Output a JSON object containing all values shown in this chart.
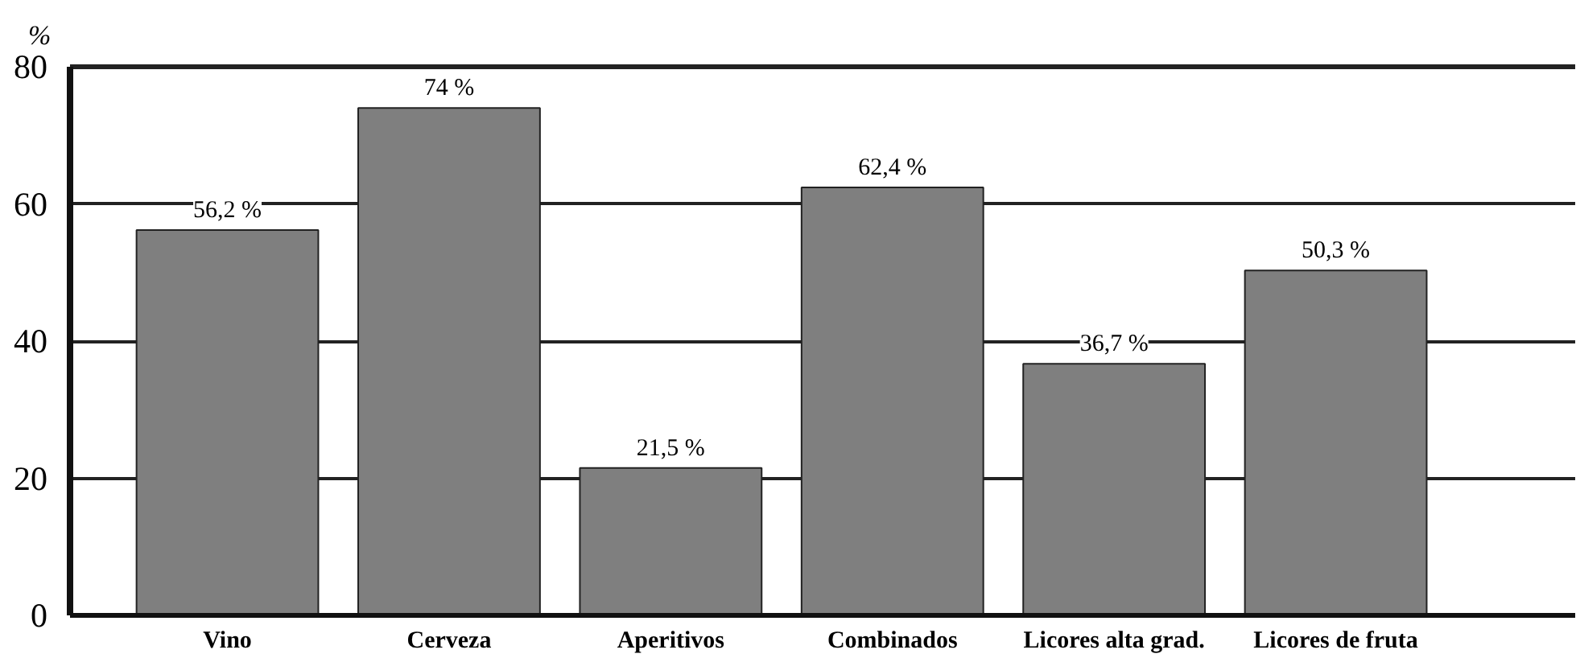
{
  "chart_data": {
    "type": "bar",
    "ylabel": "%",
    "categories": [
      "Vino",
      "Cerveza",
      "Aperitivos",
      "Combinados",
      "Licores alta grad.",
      "Licores de fruta"
    ],
    "values": [
      56.2,
      74,
      21.5,
      62.4,
      36.7,
      50.3
    ],
    "color": "#7f7f7f",
    "value_labels": [
      "56,2 %",
      "74 %",
      "21,5 %",
      "62,4 %",
      "36,7 %",
      "50,3 %"
    ],
    "ylim": [
      0,
      80
    ],
    "yticks": [
      0,
      20,
      40,
      60,
      80
    ],
    "grid": "y"
  }
}
